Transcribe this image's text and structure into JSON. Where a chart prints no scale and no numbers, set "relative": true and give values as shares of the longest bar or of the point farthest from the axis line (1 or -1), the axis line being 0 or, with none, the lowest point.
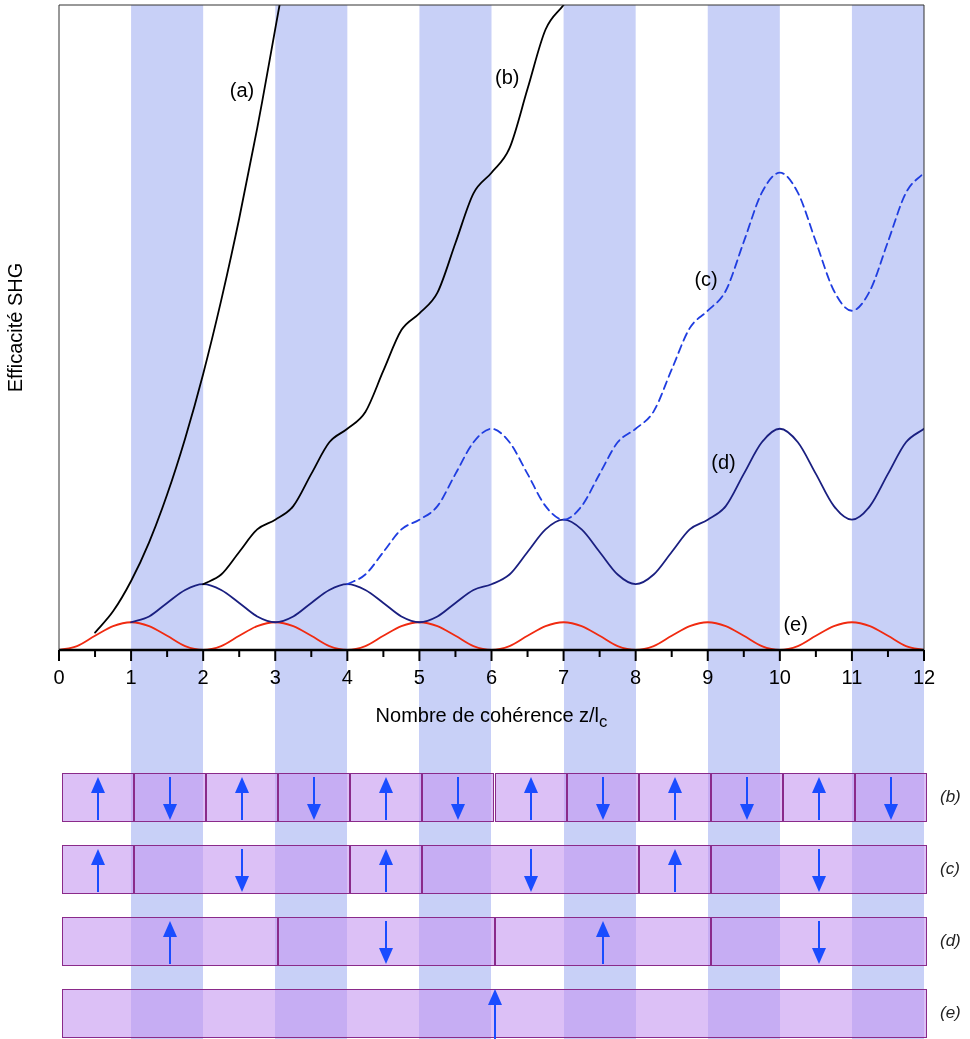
{
  "chart_data": {
    "type": "line",
    "relative": true,
    "xlabel": "Nombre de cohérence z/l$_{c}$",
    "ylabel": "Efficacité SHG",
    "x": [
      0,
      0.25,
      0.5,
      0.75,
      1,
      1.25,
      1.5,
      1.75,
      2,
      2.25,
      2.5,
      2.75,
      3,
      3.25,
      3.5,
      3.75,
      4,
      4.25,
      4.5,
      4.75,
      5,
      5.25,
      5.5,
      5.75,
      6,
      6.25,
      6.5,
      6.75,
      7,
      7.25,
      7.5,
      7.75,
      8,
      8.25,
      8.5,
      8.75,
      9,
      9.25,
      9.5,
      9.75,
      10,
      10.25,
      10.5,
      10.75,
      11,
      11.25,
      11.5,
      11.75,
      12
    ],
    "xlim": [
      0,
      12
    ],
    "xticks": [
      0,
      {
        "value": 0.5,
        "label": null
      },
      1,
      {
        "value": 1.5,
        "label": null
      },
      2,
      {
        "value": 2.5,
        "label": null
      },
      3,
      {
        "value": 3.5,
        "label": null
      },
      4,
      {
        "value": 4.5,
        "label": null
      },
      5,
      {
        "value": 5.5,
        "label": null
      },
      6,
      {
        "value": 6.5,
        "label": null
      },
      7,
      {
        "value": 7.5,
        "label": null
      },
      8,
      {
        "value": 8.5,
        "label": null
      },
      9,
      {
        "value": 9.5,
        "label": null
      },
      10,
      {
        "value": 10.5,
        "label": null
      },
      11,
      {
        "value": 11.5,
        "label": null
      },
      12
    ],
    "grid": false,
    "legend": false,
    "marker": "none",
    "series": [
      {
        "color": "#000000",
        "x": [
          0.5,
          0.75,
          1,
          1.25,
          1.5,
          1.75,
          2,
          2.25,
          2.5,
          2.75,
          2.82,
          3,
          3.06
        ],
        "values": [
          0.027,
          0.06,
          0.107,
          0.167,
          0.241,
          0.328,
          0.428,
          0.542,
          0.669,
          0.809,
          0.851,
          0.963,
          1.0
        ]
      },
      {
        "color": "#000000",
        "values": [
          null,
          null,
          null,
          null,
          null,
          null,
          null,
          null,
          0.102,
          0.117,
          0.152,
          0.187,
          0.202,
          0.223,
          0.273,
          0.322,
          0.343,
          0.369,
          0.433,
          0.496,
          0.522,
          0.554,
          0.631,
          0.708,
          0.74,
          0.778,
          0.87,
          0.962,
          1.0,
          null,
          null,
          null,
          null,
          null,
          null,
          null,
          null,
          null,
          null,
          null,
          null,
          null,
          null,
          null,
          null,
          null,
          null,
          null,
          null
        ]
      },
      {
        "color": "#1f3de0",
        "line_style": "dashed",
        "values": [
          null,
          null,
          null,
          null,
          null,
          null,
          null,
          null,
          null,
          null,
          null,
          null,
          null,
          null,
          null,
          null,
          0.102,
          0.117,
          0.152,
          0.187,
          0.202,
          0.223,
          0.273,
          0.322,
          0.343,
          0.322,
          0.273,
          0.223,
          0.202,
          0.223,
          0.273,
          0.322,
          0.343,
          0.37,
          0.435,
          0.499,
          0.526,
          0.557,
          0.633,
          0.709,
          0.74,
          0.709,
          0.633,
          0.557,
          0.526,
          0.557,
          0.633,
          0.709,
          0.74
        ]
      },
      {
        "color": "#1a1f80",
        "values": [
          null,
          null,
          null,
          null,
          0.043,
          0.052,
          0.073,
          0.093,
          0.102,
          0.093,
          0.073,
          0.052,
          0.043,
          0.052,
          0.073,
          0.093,
          0.102,
          0.093,
          0.073,
          0.052,
          0.043,
          0.052,
          0.073,
          0.093,
          0.102,
          0.117,
          0.152,
          0.187,
          0.202,
          0.187,
          0.152,
          0.117,
          0.102,
          0.117,
          0.152,
          0.187,
          0.202,
          0.223,
          0.273,
          0.322,
          0.343,
          0.322,
          0.273,
          0.223,
          0.202,
          0.223,
          0.273,
          0.322,
          0.343
        ]
      },
      {
        "color": "#f02a10",
        "values": [
          0,
          0.006,
          0.022,
          0.037,
          0.043,
          0.037,
          0.022,
          0.006,
          0,
          0.006,
          0.022,
          0.037,
          0.043,
          0.037,
          0.022,
          0.006,
          0,
          0.006,
          0.022,
          0.037,
          0.043,
          0.037,
          0.022,
          0.006,
          0,
          0.006,
          0.022,
          0.037,
          0.043,
          0.037,
          0.022,
          0.006,
          0,
          0.006,
          0.022,
          0.037,
          0.043,
          0.037,
          0.022,
          0.006,
          0,
          0.006,
          0.022,
          0.037,
          0.043,
          0.037,
          0.022,
          0.006,
          0
        ]
      }
    ],
    "bands": [
      {
        "axis": "x",
        "from": 1,
        "to": 2,
        "color": "#c8d0f7"
      },
      {
        "axis": "x",
        "from": 3,
        "to": 4,
        "color": "#c8d0f7"
      },
      {
        "axis": "x",
        "from": 5,
        "to": 6,
        "color": "#c8d0f7"
      },
      {
        "axis": "x",
        "from": 7,
        "to": 8,
        "color": "#c8d0f7"
      },
      {
        "axis": "x",
        "from": 9,
        "to": 10,
        "color": "#c8d0f7"
      },
      {
        "axis": "x",
        "from": 11,
        "to": 12,
        "color": "#c8d0f7"
      }
    ],
    "annotations": [
      {
        "text": "(a)",
        "x": 2.82,
        "y": 0.851
      },
      {
        "text": "(b)",
        "x": 6.5,
        "y": 0.87
      },
      {
        "text": "(c)",
        "x": 9.25,
        "y": 0.557
      },
      {
        "text": "(d)",
        "x": 9.5,
        "y": 0.273
      },
      {
        "text": "(e)",
        "x": 10.5,
        "y": 0.022
      },
      "(b)",
      "(c)",
      "(d)",
      "(e)"
    ]
  }
}
